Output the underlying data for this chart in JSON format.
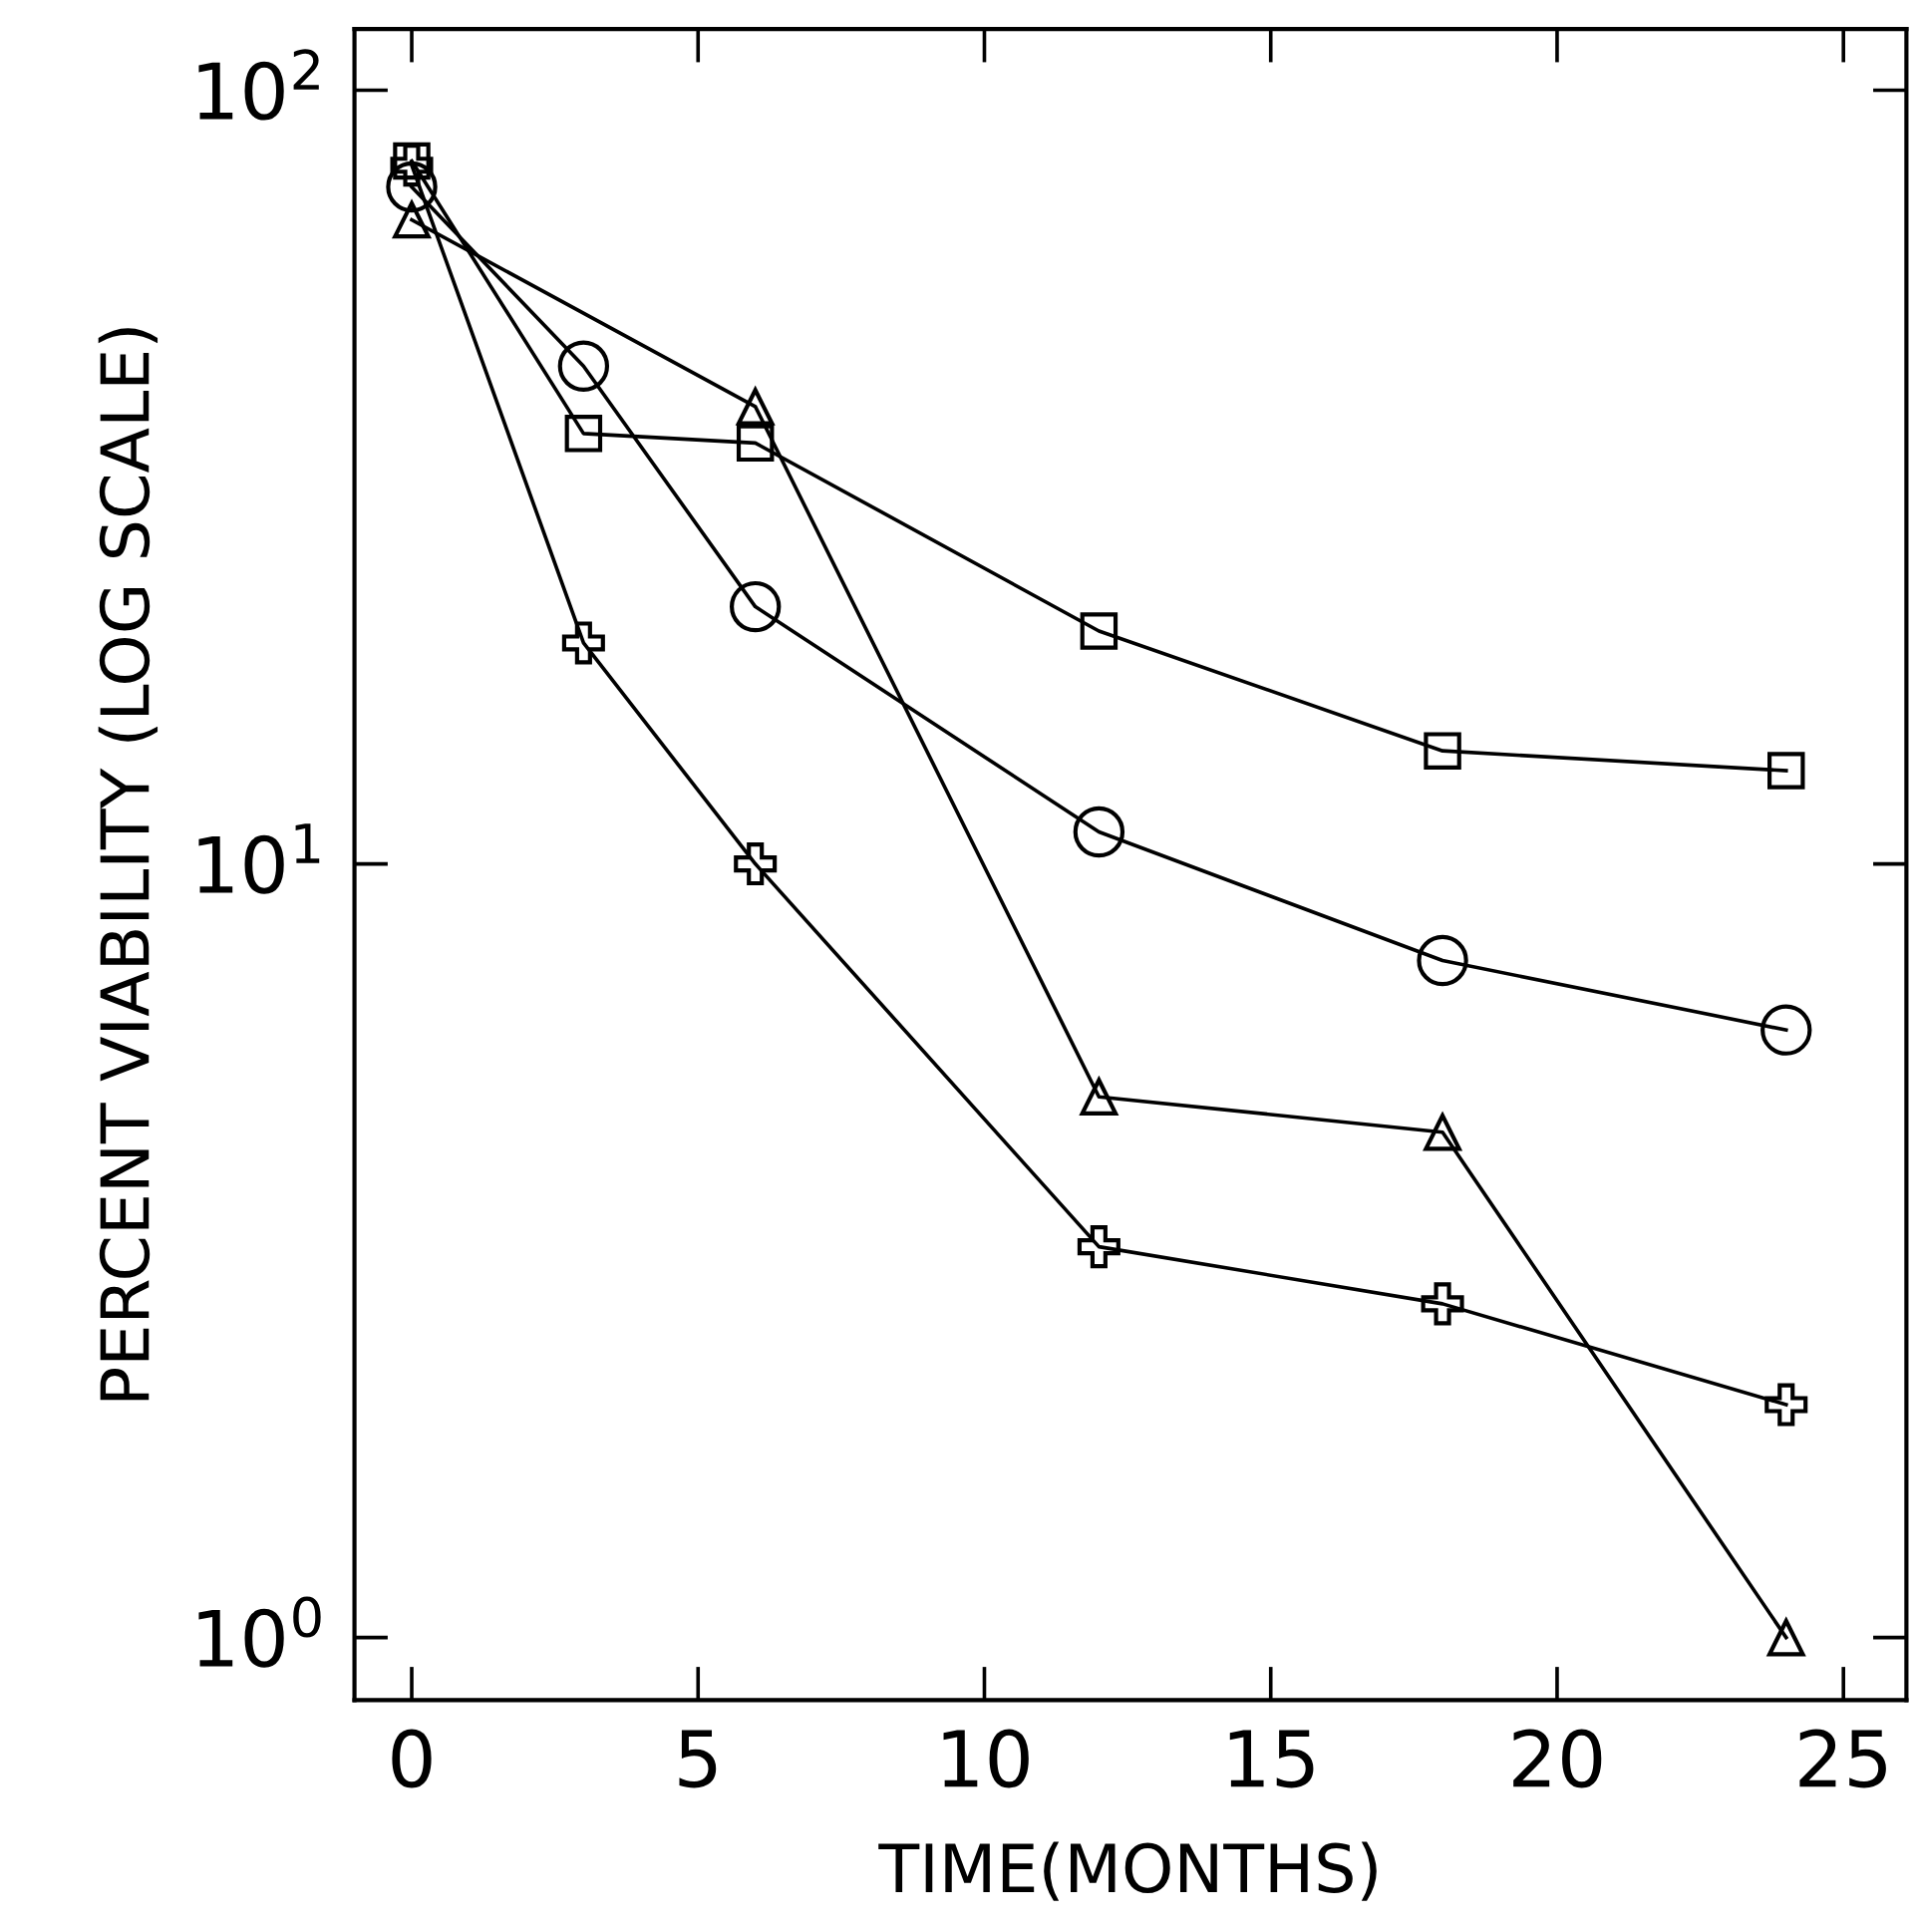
{
  "chart_data": {
    "type": "line",
    "xlabel": "TIME(MONTHS)",
    "ylabel": "PERCENT VIABILITY (LOG SCALE)",
    "log": "y",
    "x": [
      0,
      3,
      6,
      12,
      18,
      24
    ],
    "xlim": [
      -1,
      26.1
    ],
    "xticks": [
      0,
      5,
      10,
      15,
      20,
      25
    ],
    "ylim": [
      0.83,
      120
    ],
    "yticks": [
      {
        "value": 1,
        "label": "10$^{0}$"
      },
      {
        "value": 10,
        "label": "10$^{1}$"
      },
      {
        "value": 100,
        "label": "10$^{2}$"
      }
    ],
    "grid": false,
    "line_style": "solid",
    "series": [
      {
        "color": "#000000",
        "marker": "square",
        "values": [
          81,
          36,
          35,
          20,
          14,
          13.2
        ]
      },
      {
        "color": "#000000",
        "marker": "circle",
        "values": [
          75,
          44,
          21.5,
          11,
          7.5,
          6.1
        ]
      },
      {
        "color": "#000000",
        "marker": "triangle",
        "x": [
          0,
          6,
          12,
          18,
          24
        ],
        "values": [
          68,
          39,
          5.0,
          4.5,
          1.0
        ]
      },
      {
        "color": "#000000",
        "marker": "cross",
        "values": [
          80,
          19.3,
          10,
          3.2,
          2.7,
          2.0
        ]
      }
    ]
  }
}
